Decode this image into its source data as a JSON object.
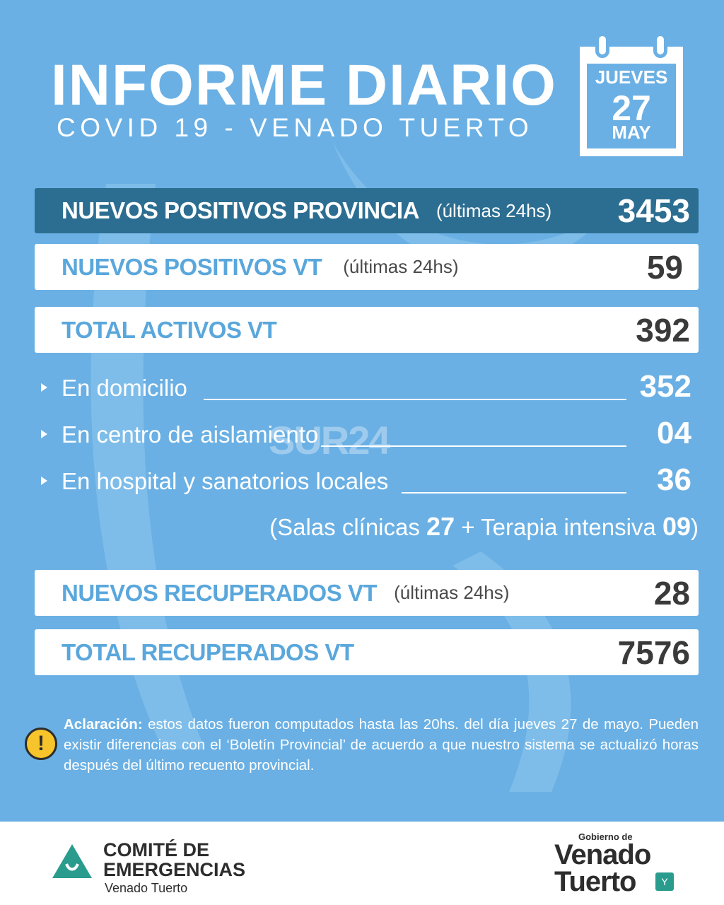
{
  "header": {
    "title": "INFORME DIARIO",
    "subtitle": "COVID 19 - VENADO TUERTO"
  },
  "calendar": {
    "day": "JUEVES",
    "date": "27",
    "month": "MAY"
  },
  "rows": {
    "province": {
      "label": "NUEVOS POSITIVOS PROVINCIA",
      "sub": "(últimas 24hs)",
      "value": "3453"
    },
    "new_vt": {
      "label": "NUEVOS POSITIVOS VT",
      "sub": "(últimas 24hs)",
      "value": "59"
    },
    "active_vt": {
      "label": "TOTAL ACTIVOS VT",
      "value": "392"
    },
    "new_recovered": {
      "label": "NUEVOS RECUPERADOS VT",
      "sub": "(últimas 24hs)",
      "value": "28"
    },
    "total_recovered": {
      "label": "TOTAL RECUPERADOS VT",
      "value": "7576"
    }
  },
  "details": {
    "home": {
      "label": "En domicilio",
      "value": "352"
    },
    "isolation": {
      "label": "En centro de aislamiento",
      "value": "04"
    },
    "hospital": {
      "label": "En hospital y sanatorios locales",
      "value": "36"
    }
  },
  "breakdown": {
    "open": "(",
    "wards_label": "Salas clínicas",
    "wards_value": "27",
    "plus": "+",
    "icu_label": "Terapia intensiva",
    "icu_value": "09",
    "close": ")"
  },
  "watermark": "SUR24",
  "note": {
    "lead": "Aclaración:",
    "text": "estos datos fueron computados hasta las 20hs. del día jueves 27 de mayo. Pueden existir diferencias con el ‘Boletín Provincial’ de acuerdo a que nuestro sistema se actualizó horas después del último recuento provincial.",
    "icon": "warning-icon"
  },
  "footer": {
    "org_line1": "COMITÉ DE",
    "org_line2": "EMERGENCIAS",
    "city": "Venado Tuerto",
    "gov_small": "Gobierno de",
    "gov_line1": "Venado",
    "gov_line2": "Tuerto"
  },
  "colors": {
    "background": "#6ab0e4",
    "dark_bar": "#2c6e91",
    "label_blue": "#5aa7dc",
    "warning": "#f7c52b"
  }
}
